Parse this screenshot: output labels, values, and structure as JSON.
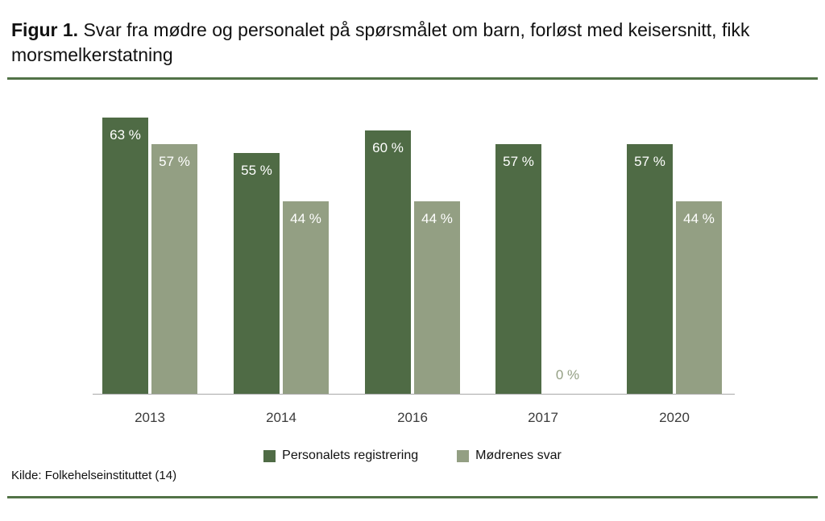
{
  "title": {
    "label": "Figur 1.",
    "text": "Svar fra mødre og personalet på spørsmålet om barn, forløst med keisersnitt, fikk morsmelkerstatning"
  },
  "source": "Kilde: Folkehelseinstituttet (14)",
  "accent_rule_color": "#527347",
  "chart_data": {
    "type": "bar",
    "title": "Figur 1. Svar fra mødre og personalet på spørsmålet om barn, forløst med keisersnitt, fikk morsmelkerstatning",
    "categories": [
      "2013",
      "2014",
      "2016",
      "2017",
      "2020"
    ],
    "series": [
      {
        "name": "Personalets registrering",
        "color": "#4f6b45",
        "values": [
          63,
          55,
          60,
          57,
          57
        ]
      },
      {
        "name": "Mødrenes svar",
        "color": "#939f83",
        "values": [
          57,
          44,
          44,
          0,
          44
        ]
      }
    ],
    "bar_labels": [
      [
        "63 %",
        "55 %",
        "60 %",
        "57 %",
        "57 %"
      ],
      [
        "57 %",
        "44 %",
        "44 %",
        "0 %",
        "44 %"
      ]
    ],
    "value_suffix": " %",
    "ylim": [
      0,
      70
    ],
    "grid": false,
    "y_axis_visible": false,
    "legend_position": "bottom",
    "bar_label_color": "#ffffff",
    "zero_label_color": "#939f83",
    "axis_line_color": "#a9a9a9",
    "tick_label_color": "#3b3b3b",
    "source": "Kilde: Folkehelseinstituttet (14)"
  }
}
